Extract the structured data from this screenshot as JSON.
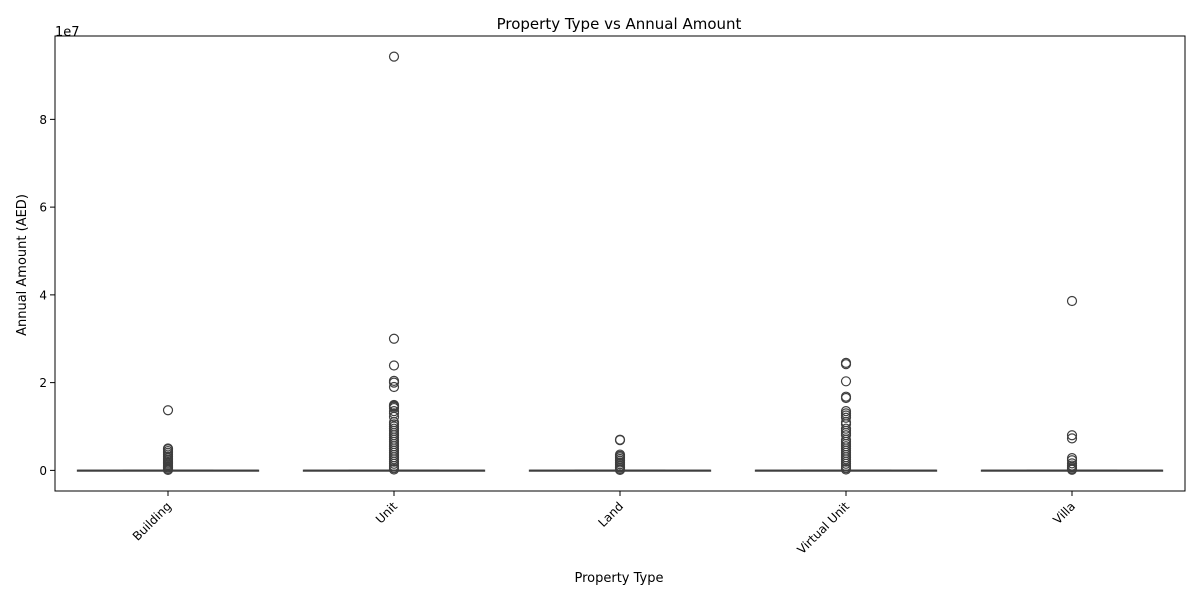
{
  "chart_data": {
    "type": "boxplot",
    "title": "Property Type vs Annual Amount",
    "xlabel": "Property Type",
    "ylabel": "Annual Amount (AED)",
    "y_offset_label": "1e7",
    "ylim": [
      -4700000,
      99000000
    ],
    "yticks": [
      0,
      20000000,
      40000000,
      60000000,
      80000000
    ],
    "ytick_labels": [
      "0",
      "2",
      "4",
      "6",
      "8"
    ],
    "grid": false,
    "categories": [
      "Building",
      "Unit",
      "Land",
      "Virtual Unit",
      "Villa"
    ],
    "boxes": [
      {
        "q1": 0,
        "median": 0,
        "q3": 0,
        "whisker_low": 0,
        "whisker_high": 0,
        "outliers": [
          13700000,
          5000000,
          4800000,
          4400000,
          4000000,
          3600000,
          3200000,
          2800000,
          2400000,
          2100000,
          1800000,
          1500000,
          1200000,
          900000,
          600000,
          300000,
          100000
        ]
      },
      {
        "q1": 0,
        "median": 0,
        "q3": 0,
        "whisker_low": 0,
        "whisker_high": 0,
        "outliers": [
          94300000,
          30000000,
          23900000,
          20400000,
          20000000,
          19000000,
          14900000,
          14700000,
          14500000,
          14200000,
          13500000,
          13000000,
          12200000,
          11000000,
          10500000,
          10000000,
          9500000,
          9000000,
          8500000,
          8000000,
          7500000,
          7000000,
          6500000,
          6000000,
          5500000,
          5000000,
          4500000,
          4000000,
          3500000,
          3000000,
          2500000,
          2000000,
          1500000,
          1000000,
          500000,
          200000
        ]
      },
      {
        "q1": 0,
        "median": 0,
        "q3": 0,
        "whisker_low": 0,
        "whisker_high": 0,
        "outliers": [
          7000000,
          6900000,
          3600000,
          3300000,
          3000000,
          2600000,
          2200000,
          1800000,
          1400000,
          1000000,
          600000,
          300000,
          100000
        ]
      },
      {
        "q1": 0,
        "median": 0,
        "q3": 0,
        "whisker_low": 0,
        "whisker_high": 0,
        "outliers": [
          24500000,
          24200000,
          20300000,
          16800000,
          16500000,
          13500000,
          13000000,
          12500000,
          12000000,
          11000000,
          10500000,
          9500000,
          9000000,
          8500000,
          8000000,
          7000000,
          6500000,
          6000000,
          5500000,
          5000000,
          4500000,
          4000000,
          3500000,
          3000000,
          2500000,
          2000000,
          1500000,
          1000000,
          500000,
          200000
        ]
      },
      {
        "q1": 0,
        "median": 0,
        "q3": 0,
        "whisker_low": 0,
        "whisker_high": 0,
        "outliers": [
          38600000,
          8000000,
          7300000,
          2800000,
          2300000,
          1600000,
          1100000,
          700000,
          400000,
          150000
        ]
      }
    ],
    "colors": {
      "box_line": "#3f3f3f",
      "outlier_edge": "#3f3f3f",
      "axis": "#000000"
    }
  }
}
